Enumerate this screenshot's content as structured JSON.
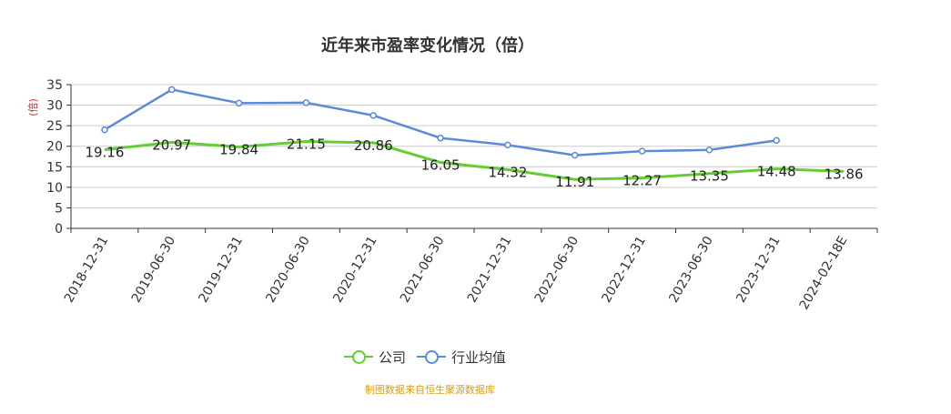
{
  "title": "近年来市盈率变化情况（倍）",
  "source_note": "制图数据来自恒生聚源数据库",
  "legend": [
    {
      "name": "公司",
      "color": "#66cc33"
    },
    {
      "name": "行业均值",
      "color": "#5b8ad8"
    }
  ],
  "chart_data": {
    "type": "line",
    "title": "近年来市盈率变化情况（倍）",
    "ylabel": "(倍)",
    "ylim": [
      0,
      35
    ],
    "yticks": [
      0,
      5,
      10,
      15,
      20,
      25,
      30,
      35
    ],
    "grid": true,
    "legend_position": "bottom",
    "categories": [
      "2018-12-31",
      "2019-06-30",
      "2019-12-31",
      "2020-06-30",
      "2020-12-31",
      "2021-06-30",
      "2021-12-31",
      "2022-06-30",
      "2022-12-31",
      "2023-06-30",
      "2023-12-31",
      "2024-02-18E"
    ],
    "series": [
      {
        "name": "公司",
        "color": "#66cc33",
        "values": [
          19.16,
          20.97,
          19.84,
          21.15,
          20.86,
          16.05,
          14.32,
          11.91,
          12.27,
          13.35,
          14.48,
          13.86
        ],
        "labels": [
          "19.16",
          "20.97",
          "19.84",
          "21.15",
          "20.86",
          "16.05",
          "14.32",
          "11.91",
          "12.27",
          "13.35",
          "14.48",
          "13.86"
        ]
      },
      {
        "name": "行业均值",
        "color": "#5b8ad8",
        "values": [
          24.0,
          33.8,
          30.5,
          30.6,
          27.5,
          22.0,
          20.3,
          17.8,
          18.8,
          19.1,
          21.4,
          null
        ]
      }
    ]
  }
}
